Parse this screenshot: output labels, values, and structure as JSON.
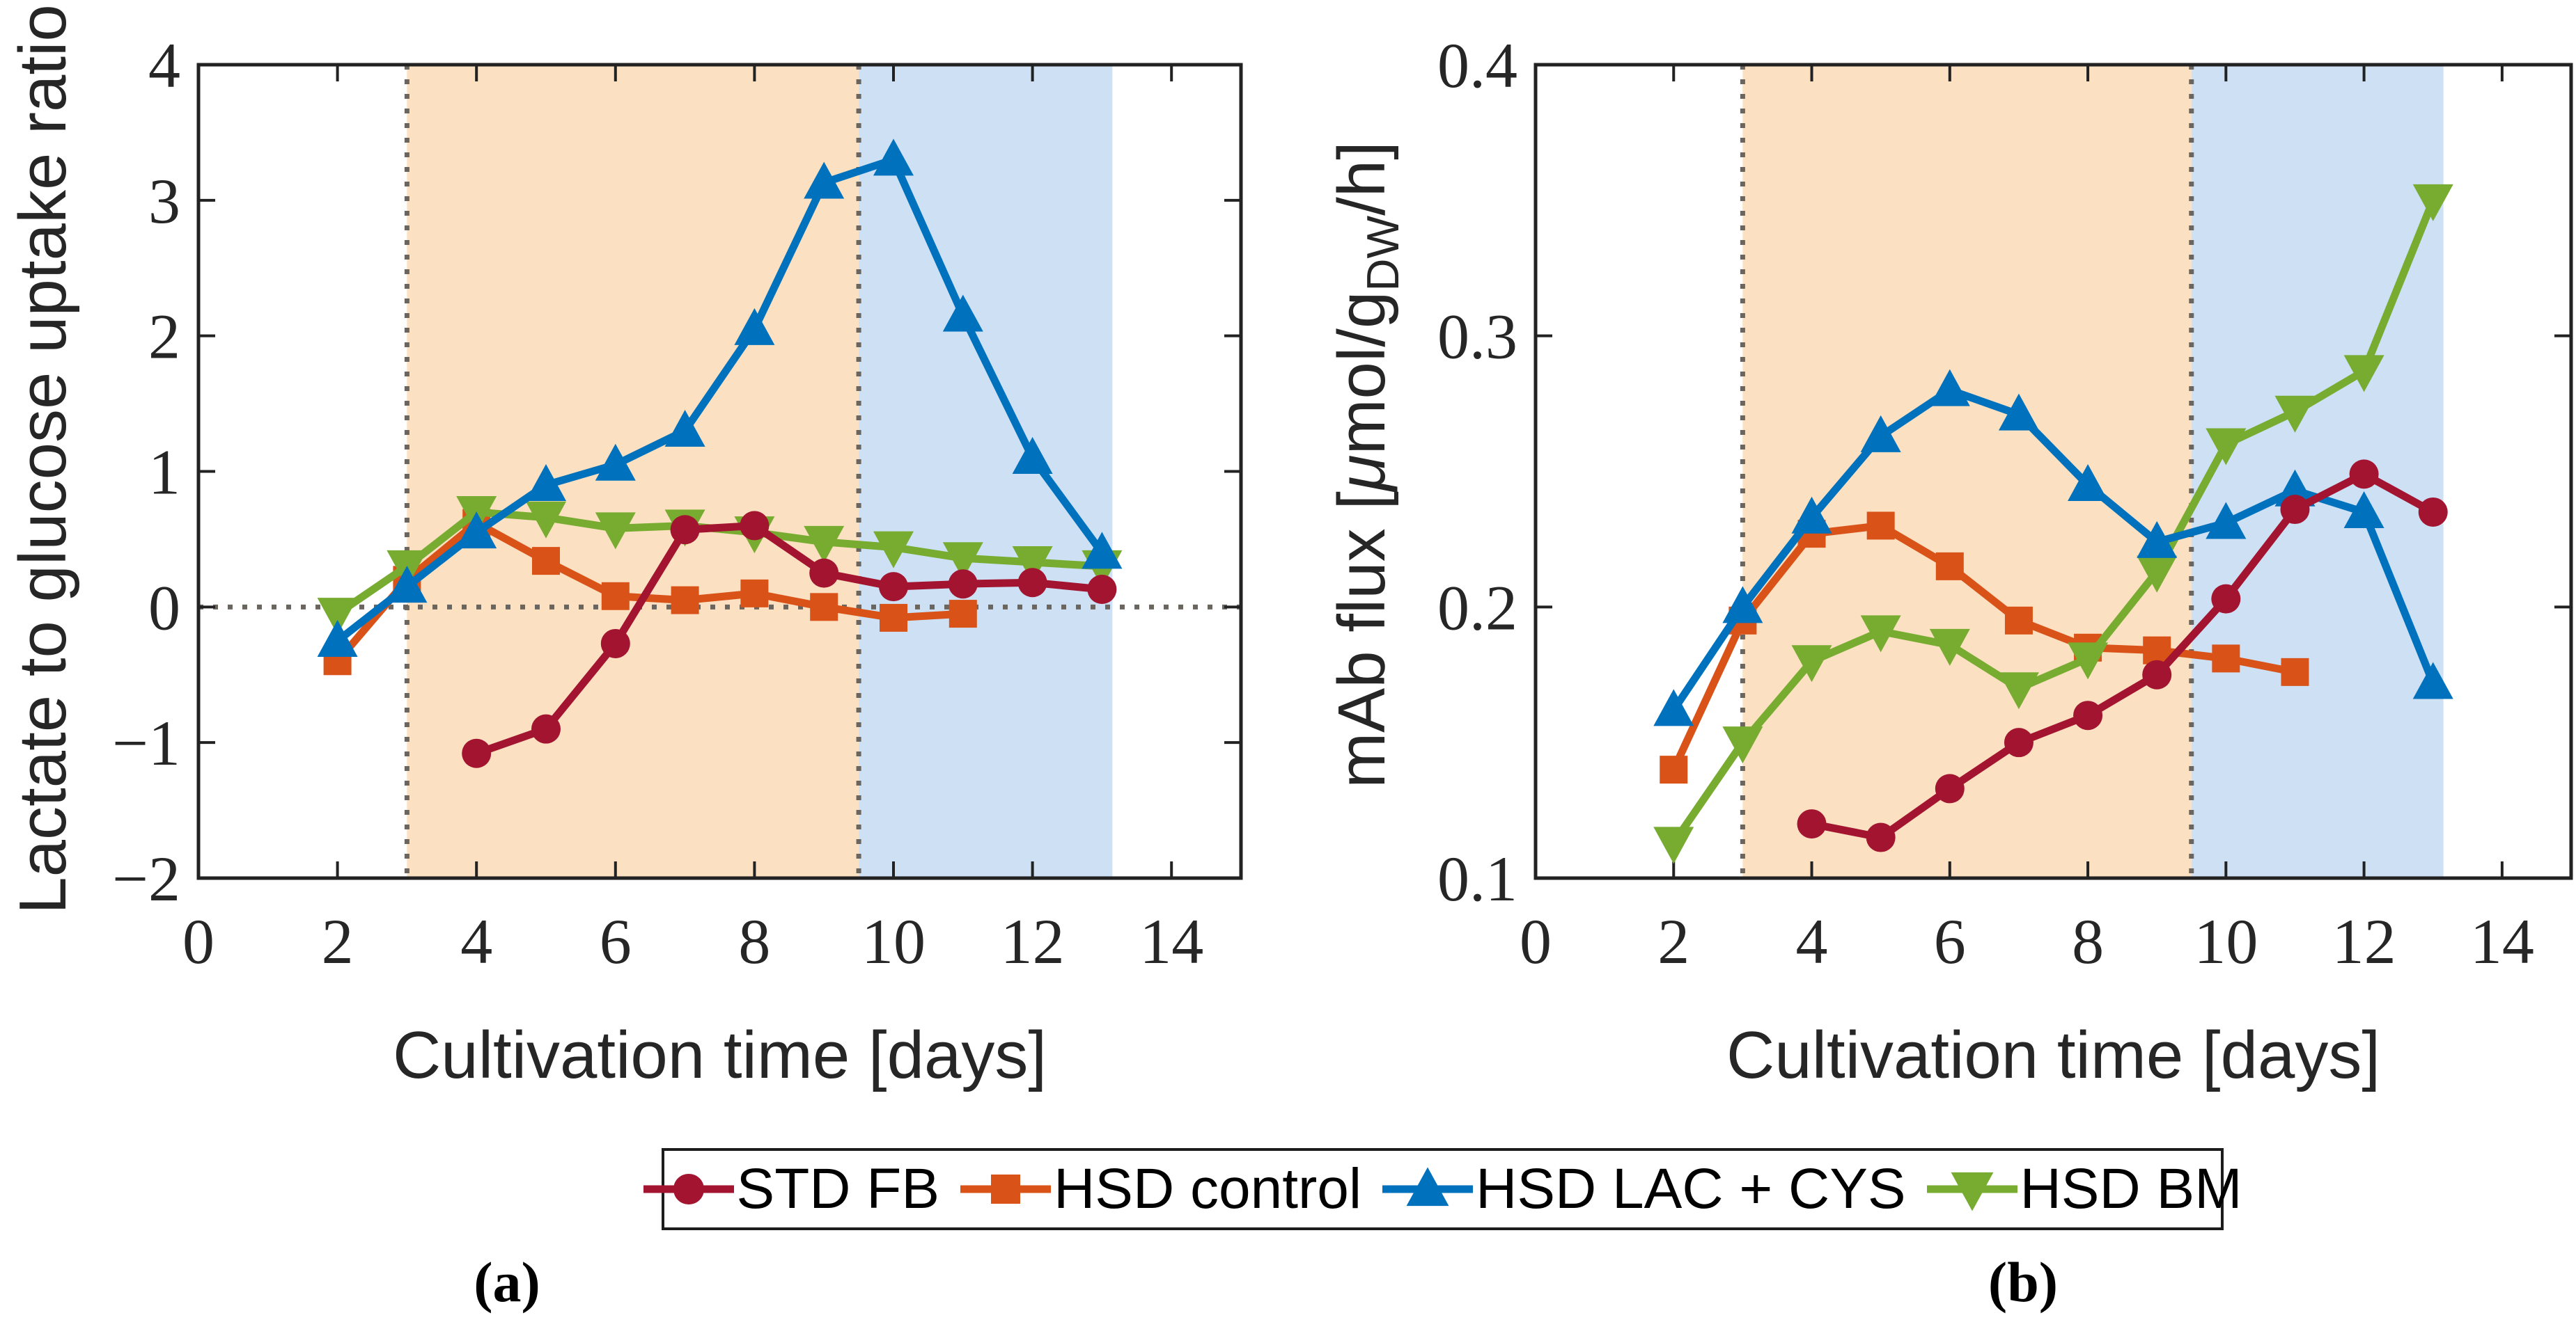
{
  "figure": {
    "background": "#ffffff",
    "panel_labels": {
      "a": "(a)",
      "b": "(b)"
    }
  },
  "colors": {
    "std_fb": "#A2142F",
    "hsd_control": "#D95319",
    "hsd_lac_cys": "#0072BD",
    "hsd_bm": "#77AC30",
    "band_orange": "#FBE0C2",
    "band_blue": "#CDE0F4",
    "dotted_line": "#6B655F",
    "axis": "#222222",
    "tick_text": "#262626"
  },
  "legend": {
    "items": [
      {
        "label": "STD FB",
        "marker": "circle",
        "color_key": "std_fb"
      },
      {
        "label": "HSD control",
        "marker": "square",
        "color_key": "hsd_control"
      },
      {
        "label": "HSD LAC + CYS",
        "marker": "triangle-up",
        "color_key": "hsd_lac_cys"
      },
      {
        "label": "HSD BM",
        "marker": "triangle-down",
        "color_key": "hsd_bm"
      }
    ]
  },
  "chart_data": [
    {
      "id": "a",
      "type": "line",
      "xlabel": "Cultivation time [days]",
      "ylabel": "Lactate to glucose uptake ratio",
      "xlim": [
        0,
        15
      ],
      "ylim": [
        -2,
        4
      ],
      "xticks": [
        0,
        2,
        4,
        6,
        8,
        10,
        12,
        14
      ],
      "yticks": [
        -2,
        -1,
        0,
        1,
        2,
        3,
        4
      ],
      "ytick_decimals": 0,
      "grid": false,
      "zero_line": 0,
      "bands": [
        {
          "x0": 3,
          "x1": 9.5,
          "color_key": "band_orange"
        },
        {
          "x0": 9.5,
          "x1": 13.15,
          "color_key": "band_blue"
        }
      ],
      "vlines": [
        3,
        9.5
      ],
      "series": [
        {
          "name": "HSD control",
          "marker": "square",
          "color_key": "hsd_control",
          "x": [
            2,
            3,
            4,
            5,
            6,
            7,
            8,
            9,
            10,
            11
          ],
          "y": [
            -0.4,
            0.2,
            0.62,
            0.34,
            0.08,
            0.05,
            0.1,
            0.0,
            -0.08,
            -0.05
          ]
        },
        {
          "name": "HSD BM",
          "marker": "triangle-down",
          "color_key": "hsd_bm",
          "x": [
            2,
            3,
            4,
            5,
            6,
            7,
            8,
            9,
            10,
            11,
            12,
            13
          ],
          "y": [
            -0.05,
            0.3,
            0.7,
            0.66,
            0.58,
            0.6,
            0.55,
            0.48,
            0.44,
            0.36,
            0.33,
            0.3
          ]
        },
        {
          "name": "HSD LAC + CYS",
          "marker": "triangle-up",
          "color_key": "hsd_lac_cys",
          "x": [
            2,
            3,
            4,
            5,
            6,
            7,
            8,
            9,
            10,
            11,
            12,
            13
          ],
          "y": [
            -0.25,
            0.15,
            0.55,
            0.9,
            1.05,
            1.3,
            2.05,
            3.13,
            3.3,
            2.15,
            1.1,
            0.4
          ]
        },
        {
          "name": "STD FB",
          "marker": "circle",
          "color_key": "std_fb",
          "x": [
            4,
            5,
            6,
            7,
            8,
            9,
            10,
            11,
            12,
            13
          ],
          "y": [
            -1.08,
            -0.9,
            -0.27,
            0.57,
            0.6,
            0.25,
            0.15,
            0.17,
            0.18,
            0.13
          ]
        }
      ]
    },
    {
      "id": "b",
      "type": "line",
      "xlabel": "Cultivation time [days]",
      "ylabel": "mAb flux [μmol/g_DW/h]",
      "ylabel_parts": {
        "p1": "mAb flux [",
        "mu": "μ",
        "p2": "mol/g",
        "sub": "DW",
        "p3": "/h]"
      },
      "xlim": [
        0,
        15
      ],
      "ylim": [
        0.1,
        0.4
      ],
      "xticks": [
        0,
        2,
        4,
        6,
        8,
        10,
        12,
        14
      ],
      "yticks": [
        0.1,
        0.2,
        0.3,
        0.4
      ],
      "ytick_decimals": 1,
      "grid": false,
      "zero_line": null,
      "bands": [
        {
          "x0": 3,
          "x1": 9.5,
          "color_key": "band_orange"
        },
        {
          "x0": 9.5,
          "x1": 13.15,
          "color_key": "band_blue"
        }
      ],
      "vlines": [
        3,
        9.5
      ],
      "series": [
        {
          "name": "HSD control",
          "marker": "square",
          "color_key": "hsd_control",
          "x": [
            2,
            3,
            4,
            5,
            6,
            7,
            8,
            9,
            10,
            11
          ],
          "y": [
            0.14,
            0.195,
            0.227,
            0.23,
            0.215,
            0.195,
            0.185,
            0.184,
            0.181,
            0.176
          ]
        },
        {
          "name": "HSD BM",
          "marker": "triangle-down",
          "color_key": "hsd_bm",
          "x": [
            2,
            3,
            4,
            5,
            6,
            7,
            8,
            9,
            10,
            11,
            12,
            13
          ],
          "y": [
            0.113,
            0.15,
            0.18,
            0.191,
            0.186,
            0.17,
            0.181,
            0.213,
            0.26,
            0.272,
            0.287,
            0.35
          ]
        },
        {
          "name": "HSD LAC + CYS",
          "marker": "triangle-up",
          "color_key": "hsd_lac_cys",
          "x": [
            2,
            3,
            4,
            5,
            6,
            7,
            8,
            9,
            10,
            11,
            12,
            13
          ],
          "y": [
            0.162,
            0.2,
            0.233,
            0.263,
            0.28,
            0.271,
            0.245,
            0.224,
            0.231,
            0.243,
            0.235,
            0.172
          ]
        },
        {
          "name": "STD FB",
          "marker": "circle",
          "color_key": "std_fb",
          "x": [
            4,
            5,
            6,
            7,
            8,
            9,
            10,
            11,
            12,
            13
          ],
          "y": [
            0.12,
            0.115,
            0.133,
            0.15,
            0.16,
            0.175,
            0.203,
            0.236,
            0.249,
            0.235
          ]
        }
      ]
    }
  ]
}
